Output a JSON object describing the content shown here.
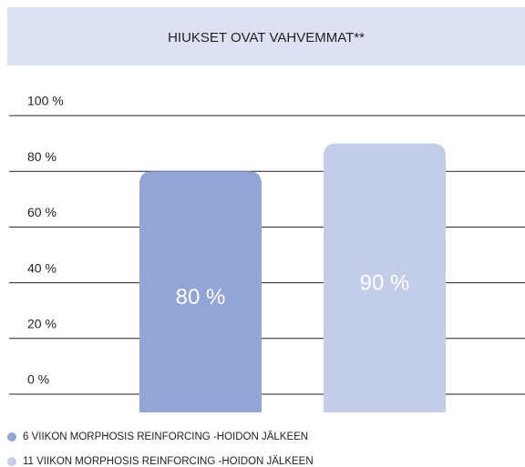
{
  "chart_data": {
    "type": "bar",
    "title": "HIUKSET OVAT VAHVEMMAT**",
    "series": [
      {
        "name": "6 VIIKON MORPHOSIS REINFORCING -HOIDON JÄLKEEN",
        "color": "#93a5d6",
        "values": [
          80
        ],
        "value_labels": [
          "80 %"
        ]
      },
      {
        "name": "11 VIIKON MORPHOSIS REINFORCING -HOIDON JÄLKEEN",
        "color": "#c3cdea",
        "values": [
          90
        ],
        "value_labels": [
          "90 %"
        ]
      }
    ],
    "ylim": [
      0,
      100
    ],
    "yticks": [
      {
        "value": 0,
        "label": "0 %"
      },
      {
        "value": 20,
        "label": "20 %"
      },
      {
        "value": 40,
        "label": "40 %"
      },
      {
        "value": 60,
        "label": "60 %"
      },
      {
        "value": 80,
        "label": "80 %"
      },
      {
        "value": 100,
        "label": "100 %"
      }
    ],
    "grid": true
  }
}
